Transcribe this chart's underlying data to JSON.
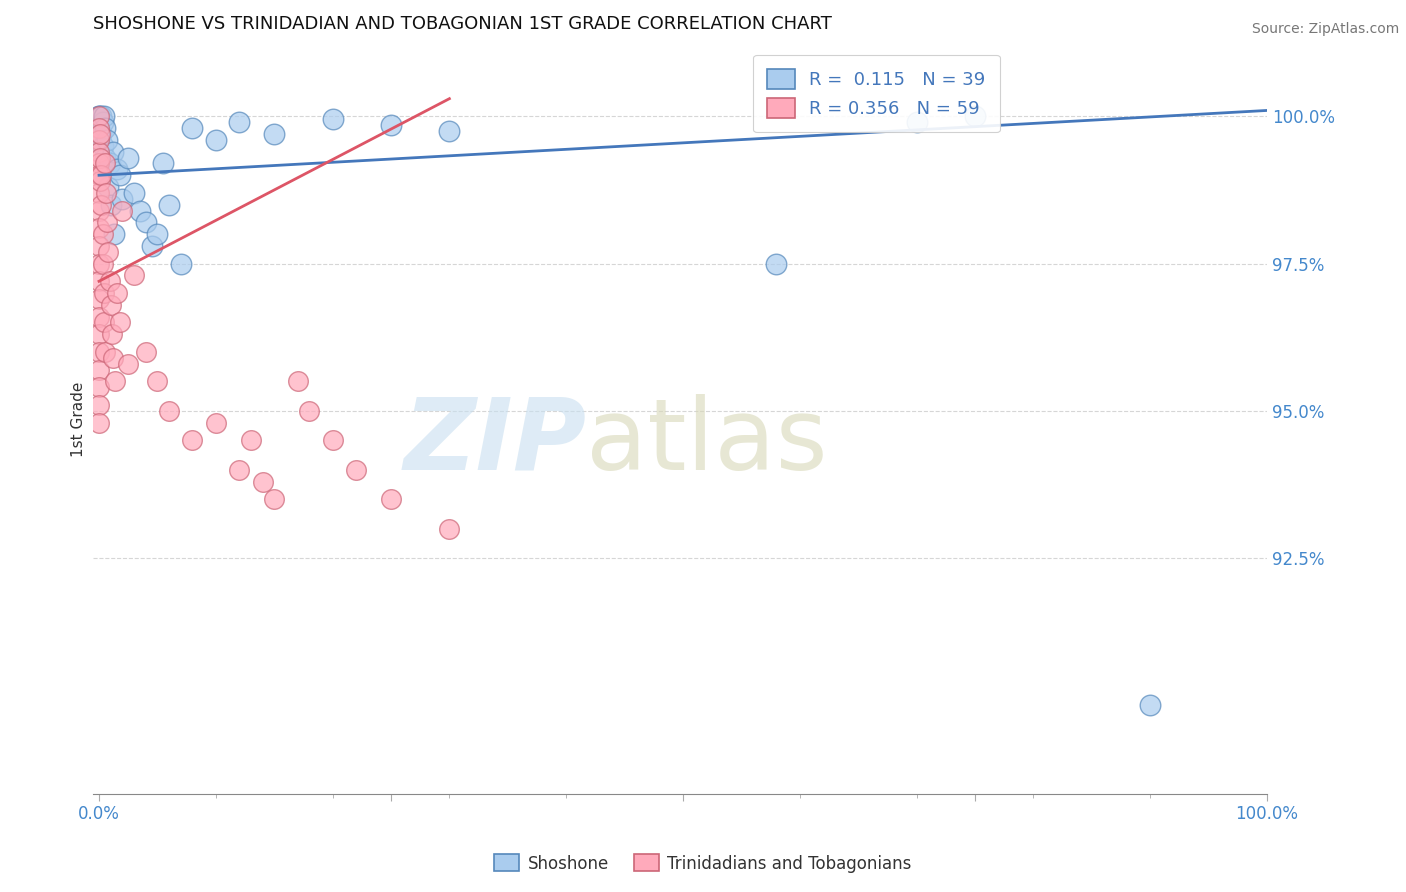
{
  "title": "SHOSHONE VS TRINIDADIAN AND TOBAGONIAN 1ST GRADE CORRELATION CHART",
  "source": "Source: ZipAtlas.com",
  "ylabel": "1st Grade",
  "legend_label_1": "Shoshone",
  "legend_label_2": "Trinidadians and Tobagonians",
  "r1": 0.115,
  "n1": 39,
  "r2": 0.356,
  "n2": 59,
  "color_blue_fill": "#aaccee",
  "color_blue_edge": "#5588bb",
  "color_pink_fill": "#ffaabb",
  "color_pink_edge": "#cc6677",
  "color_blue_line": "#4477bb",
  "color_pink_line": "#dd5566",
  "ytick_values": [
    92.5,
    95.0,
    97.5,
    100.0
  ],
  "xlim": [
    -0.005,
    1.0
  ],
  "ylim": [
    88.5,
    101.2
  ],
  "blue_x": [
    0.0,
    0.0,
    0.0,
    0.002,
    0.002,
    0.003,
    0.003,
    0.004,
    0.005,
    0.005,
    0.007,
    0.008,
    0.009,
    0.01,
    0.012,
    0.013,
    0.015,
    0.018,
    0.02,
    0.025,
    0.03,
    0.035,
    0.04,
    0.045,
    0.05,
    0.055,
    0.06,
    0.07,
    0.08,
    0.1,
    0.12,
    0.15,
    0.2,
    0.25,
    0.3,
    0.58,
    0.7,
    0.75,
    0.9
  ],
  "blue_y": [
    100.0,
    100.0,
    99.8,
    100.0,
    99.7,
    99.9,
    99.5,
    100.0,
    99.8,
    99.3,
    99.6,
    98.8,
    99.2,
    98.5,
    99.4,
    98.0,
    99.1,
    99.0,
    98.6,
    99.3,
    98.7,
    98.4,
    98.2,
    97.8,
    98.0,
    99.2,
    98.5,
    97.5,
    99.8,
    99.6,
    99.9,
    99.7,
    99.95,
    99.85,
    99.75,
    97.5,
    99.9,
    100.0,
    90.0
  ],
  "pink_x": [
    0.0,
    0.0,
    0.0,
    0.0,
    0.0,
    0.0,
    0.0,
    0.0,
    0.0,
    0.0,
    0.0,
    0.0,
    0.0,
    0.0,
    0.0,
    0.0,
    0.0,
    0.0,
    0.0,
    0.0,
    0.001,
    0.001,
    0.001,
    0.002,
    0.002,
    0.003,
    0.003,
    0.004,
    0.004,
    0.005,
    0.005,
    0.006,
    0.007,
    0.008,
    0.009,
    0.01,
    0.011,
    0.012,
    0.014,
    0.015,
    0.018,
    0.02,
    0.025,
    0.03,
    0.04,
    0.05,
    0.06,
    0.08,
    0.1,
    0.12,
    0.13,
    0.14,
    0.15,
    0.17,
    0.18,
    0.2,
    0.22,
    0.25,
    0.3
  ],
  "pink_y": [
    100.0,
    99.8,
    99.6,
    99.4,
    99.2,
    99.0,
    98.7,
    98.4,
    98.1,
    97.8,
    97.5,
    97.2,
    96.9,
    96.6,
    96.3,
    96.0,
    95.7,
    95.4,
    95.1,
    94.8,
    99.7,
    99.3,
    98.9,
    99.0,
    98.5,
    98.0,
    97.5,
    97.0,
    96.5,
    96.0,
    99.2,
    98.7,
    98.2,
    97.7,
    97.2,
    96.8,
    96.3,
    95.9,
    95.5,
    97.0,
    96.5,
    98.4,
    95.8,
    97.3,
    96.0,
    95.5,
    95.0,
    94.5,
    94.8,
    94.0,
    94.5,
    93.8,
    93.5,
    95.5,
    95.0,
    94.5,
    94.0,
    93.5,
    93.0
  ],
  "blue_line_x": [
    0.0,
    1.0
  ],
  "blue_line_y": [
    99.0,
    100.1
  ],
  "pink_line_x": [
    0.0,
    0.3
  ],
  "pink_line_y": [
    97.2,
    100.3
  ],
  "watermark_zip_color": "#c8dff0",
  "watermark_atlas_color": "#d8d8b8",
  "tick_color": "#4488cc"
}
